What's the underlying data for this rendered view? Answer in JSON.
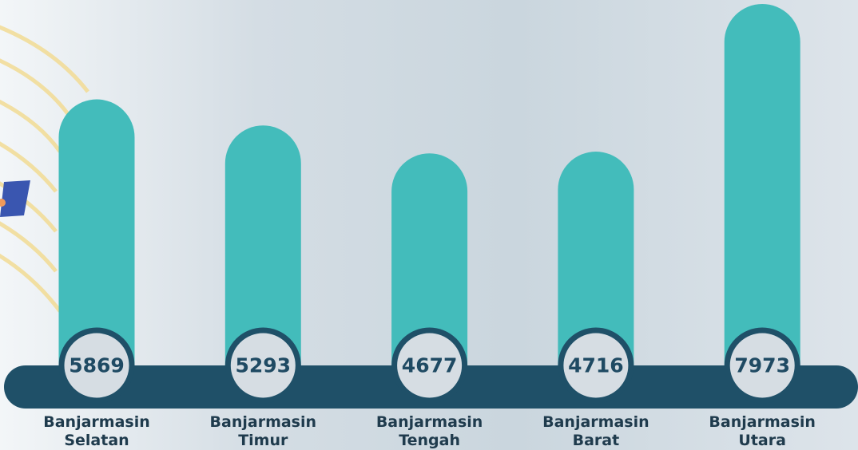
{
  "chart_data": {
    "type": "bar",
    "categories": [
      "Banjarmasin Selatan",
      "Banjarmasin Timur",
      "Banjarmasin Tengah",
      "Banjarmasin Barat",
      "Banjarmasin Utara"
    ],
    "values": [
      5869,
      5293,
      4677,
      4716,
      7973
    ],
    "color": "#43bcbb"
  }
}
